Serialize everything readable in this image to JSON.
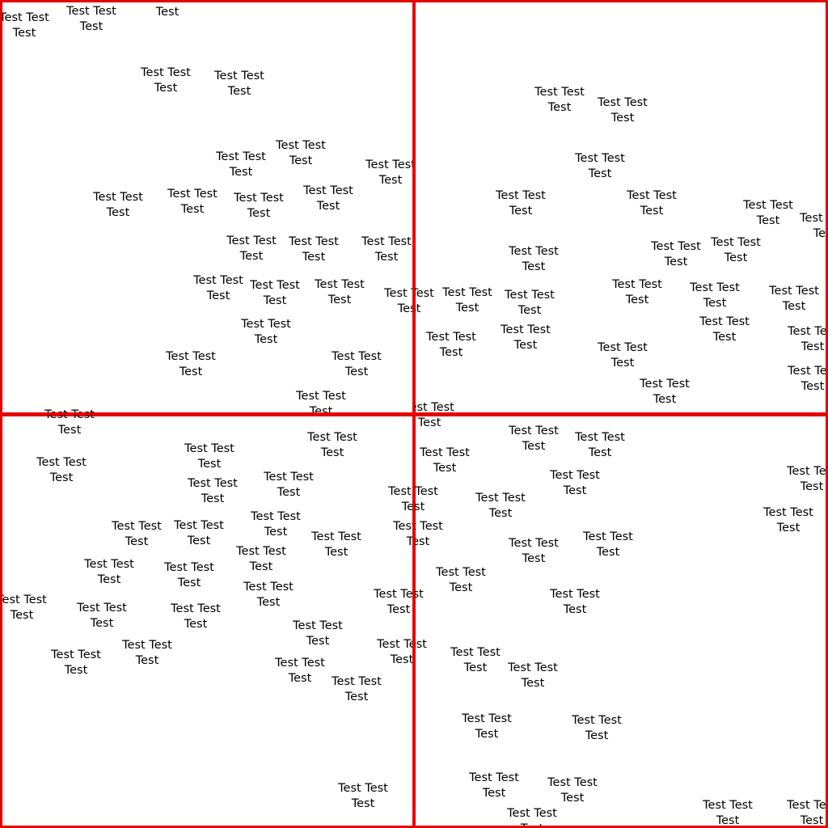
{
  "tile_border_color": "#e50000",
  "label_text": "Test Test Test",
  "tiles": [
    {
      "id": "tile-tl",
      "name": "tile-top-left",
      "labels": 26
    },
    {
      "id": "tile-tr",
      "name": "tile-top-right",
      "labels": 27
    },
    {
      "id": "tile-bl",
      "name": "tile-bottom-left",
      "labels": 31
    },
    {
      "id": "tile-br",
      "name": "tile-bottom-right",
      "labels": 23
    }
  ]
}
